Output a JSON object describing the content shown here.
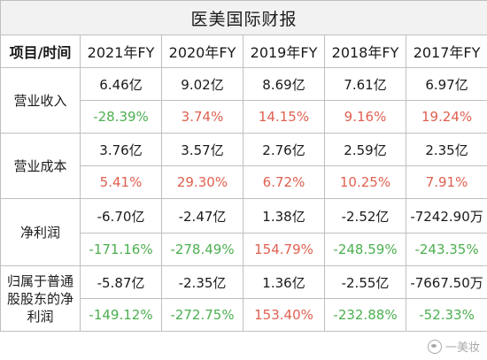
{
  "title": "医美国际财报",
  "header": [
    "项目/时间",
    "2021年FY",
    "2020年FY",
    "2019年FY",
    "2018年FY",
    "2017年FY"
  ],
  "rows": [
    {
      "label": "营业收入",
      "values": [
        "6.46亿",
        "9.02亿",
        "8.69亿",
        "7.61亿",
        "6.97亿"
      ],
      "growth": [
        "-28.39%",
        "3.74%",
        "14.15%",
        "9.16%",
        "19.24%"
      ]
    },
    {
      "label": "营业成本",
      "values": [
        "3.76亿",
        "3.57亿",
        "2.76亿",
        "2.59亿",
        "2.35亿"
      ],
      "growth": [
        "5.41%",
        "29.30%",
        "6.72%",
        "10.25%",
        "7.91%"
      ]
    },
    {
      "label": "净利润",
      "values": [
        "-6.70亿",
        "-2.47亿",
        "1.38亿",
        "-2.52亿",
        "-7242.90万"
      ],
      "growth": [
        "-171.16%",
        "-278.49%",
        "154.79%",
        "-248.59%",
        "-243.35%"
      ]
    },
    {
      "label": "归属于普通股股东的净利润",
      "values": [
        "-5.87亿",
        "-2.35亿",
        "1.36亿",
        "-2.55亿",
        "-7667.50万"
      ],
      "growth": [
        "-149.12%",
        "-272.75%",
        "153.40%",
        "-232.88%",
        "-52.33%"
      ]
    }
  ],
  "colors": {
    "positive": "#e06050",
    "negative": "#4caf50",
    "header_bg": "#f2f2f2",
    "border": "#bfbfbf"
  },
  "watermark": {
    "icon": "wechat-icon",
    "text": "一美妆"
  }
}
